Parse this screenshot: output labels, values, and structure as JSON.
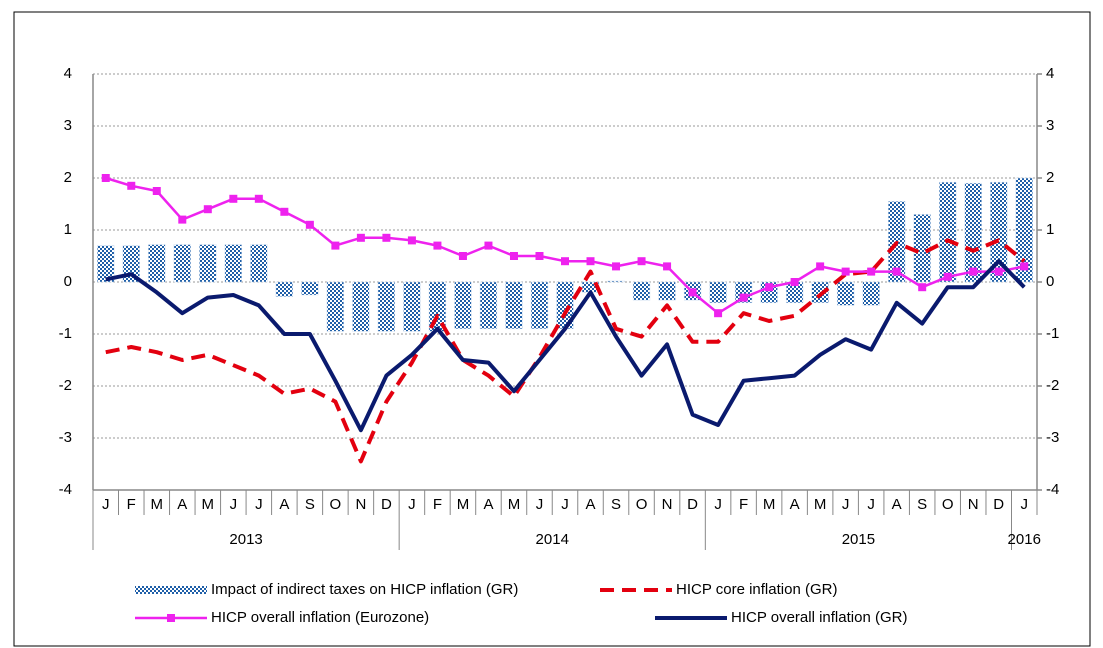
{
  "chart_data": {
    "type": "combo",
    "categories": [
      "J",
      "F",
      "M",
      "A",
      "M",
      "J",
      "J",
      "A",
      "S",
      "O",
      "N",
      "D",
      "J",
      "F",
      "M",
      "A",
      "M",
      "J",
      "J",
      "A",
      "S",
      "O",
      "N",
      "D",
      "J",
      "F",
      "M",
      "A",
      "M",
      "J",
      "J",
      "A",
      "S",
      "O",
      "N",
      "D",
      "J"
    ],
    "years": [
      "2013",
      "2014",
      "2015",
      "2016"
    ],
    "ylim": [
      -4,
      4
    ],
    "yticks": [
      -4,
      -3,
      -2,
      -1,
      0,
      1,
      2,
      3,
      4
    ],
    "y2lim": [
      -4,
      4
    ],
    "y2ticks": [
      -4,
      -3,
      -2,
      -1,
      0,
      1,
      2,
      3,
      4
    ],
    "grid": true,
    "series": [
      {
        "name": "Impact of indirect taxes on HICP inflation (GR)",
        "type": "bar",
        "color": "#1f5fa8",
        "values": [
          0.7,
          0.7,
          0.72,
          0.72,
          0.72,
          0.72,
          0.72,
          -0.28,
          -0.25,
          -0.95,
          -0.95,
          -0.95,
          -0.95,
          -0.95,
          -0.9,
          -0.9,
          -0.9,
          -0.9,
          -0.9,
          -0.2,
          0.02,
          -0.35,
          -0.35,
          -0.35,
          -0.4,
          -0.4,
          -0.4,
          -0.4,
          -0.4,
          -0.45,
          -0.45,
          1.55,
          1.3,
          1.92,
          1.9,
          1.92,
          2.0
        ]
      },
      {
        "name": "HICP core inflation (GR)",
        "type": "line",
        "dash": "dashed",
        "color": "#e3000f",
        "values": [
          -1.35,
          -1.25,
          -1.35,
          -1.5,
          -1.4,
          -1.6,
          -1.8,
          -2.15,
          -2.05,
          -2.3,
          -3.45,
          -2.3,
          -1.55,
          -0.65,
          -1.5,
          -1.8,
          -2.2,
          -1.45,
          -0.6,
          0.2,
          -0.9,
          -1.05,
          -0.45,
          -1.15,
          -1.15,
          -0.6,
          -0.75,
          -0.65,
          -0.25,
          0.15,
          0.2,
          0.75,
          0.55,
          0.8,
          0.6,
          0.8,
          0.4
        ]
      },
      {
        "name": "HICP overall inflation (Eurozone)",
        "type": "line",
        "marker": "square",
        "color": "#ee22ee",
        "values": [
          2.0,
          1.85,
          1.75,
          1.2,
          1.4,
          1.6,
          1.6,
          1.35,
          1.1,
          0.7,
          0.85,
          0.85,
          0.8,
          0.7,
          0.5,
          0.7,
          0.5,
          0.5,
          0.4,
          0.4,
          0.3,
          0.4,
          0.3,
          -0.2,
          -0.6,
          -0.3,
          -0.1,
          0.0,
          0.3,
          0.2,
          0.2,
          0.2,
          -0.1,
          0.1,
          0.2,
          0.2,
          0.3
        ]
      },
      {
        "name": "HICP overall inflation (GR)",
        "type": "line",
        "color": "#0a1a6e",
        "values": [
          0.05,
          0.15,
          -0.2,
          -0.6,
          -0.3,
          -0.25,
          -0.45,
          -1.0,
          -1.0,
          -1.9,
          -2.85,
          -1.8,
          -1.4,
          -0.9,
          -1.5,
          -1.55,
          -2.1,
          -1.5,
          -0.9,
          -0.2,
          -1.05,
          -1.8,
          -1.2,
          -2.55,
          -2.75,
          -1.9,
          -1.85,
          -1.8,
          -1.4,
          -1.1,
          -1.3,
          -0.4,
          -0.8,
          -0.1,
          -0.1,
          0.4,
          -0.1
        ]
      }
    ]
  }
}
